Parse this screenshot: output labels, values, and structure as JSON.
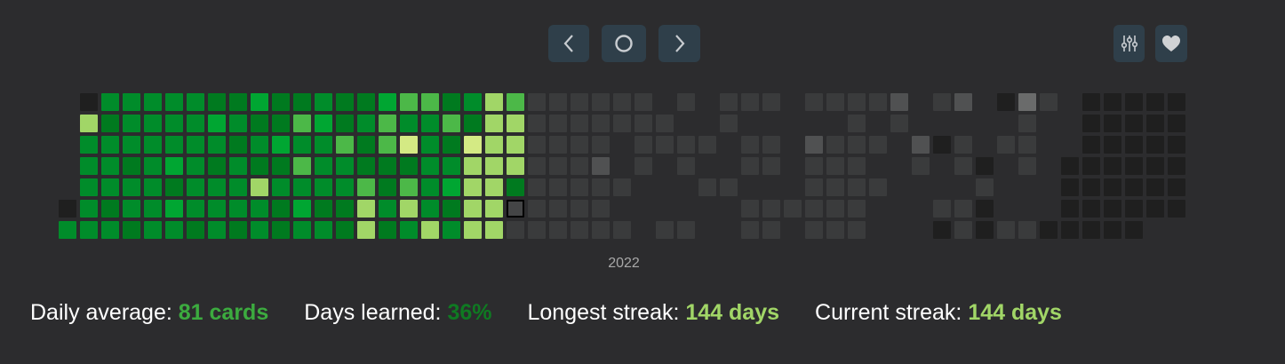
{
  "toolbar": {
    "prev_icon": "chevron-left-icon",
    "today_icon": "circle-icon",
    "next_icon": "chevron-right-icon",
    "filter_icon": "sliders-icon",
    "favorite_icon": "heart-icon",
    "button_color": "#2f3f4a",
    "icon_color": "#c8ccd0"
  },
  "heatmap": {
    "year_label": "2022",
    "legend": {
      ".": "no cell",
      "k": "no reviews",
      "g": "past, low",
      "G": "past, medium",
      "H": "past, high",
      "d": "green level 1",
      "m": "green level 2",
      "b": "green level 3",
      "l": "green level 4",
      "y": "green level 5",
      "Y": "green level 6",
      "S": "today (selected)"
    },
    "colors": {
      "k": "#1f1f1f",
      "g": "#3a3b3c",
      "G": "#505152",
      "H": "#6a6b6b",
      "d": "#007a1f",
      "m": "#008c2a",
      "b": "#00a632",
      "l": "#4cb848",
      "y": "#a1d667",
      "Y": "#d4ea84",
      "S": "#444546"
    },
    "rows": [
      ".kmmmmmddbddmddblldmylgggggg.g.ggg.ggggG.gG.kHg.kkkkk",
      ".ydmmmmbmddlbdmlmmldyyggggggg..g.....g.g.....g..kkkkk",
      ".mmmmmmmdmbmmldlYmdYyygggg.gggg.gg.Gggg.Gkg.gg..kkkkk",
      ".mmdmbmdmddlmmdddmmyyygggG.g.g..gg.ggg..g.gk.g.kkkkkk",
      ".mmmmdmmmymmmmldlmbyydggggg...gg...gggg....g...kkkkkk",
      "kmdmmbmmmmdbddymymdyySgggg......gggggg...ggk...kkkkkk",
      "mmmdmmdmdmdmmdydmymyygggggg.gg..gg.ggg...kgkggkkkkk."
    ]
  },
  "stats": [
    {
      "label": "Daily average:",
      "value": "81 cards",
      "color": "#3cab3f"
    },
    {
      "label": "Days learned:",
      "value": "36%",
      "color": "#0f7a22"
    },
    {
      "label": "Longest streak:",
      "value": "144 days",
      "color": "#a1d667"
    },
    {
      "label": "Current streak:",
      "value": "144 days",
      "color": "#a1d667"
    }
  ]
}
